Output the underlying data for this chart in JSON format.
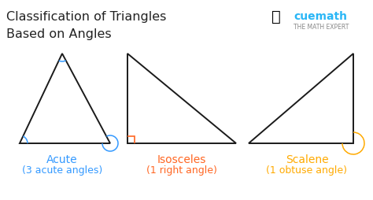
{
  "title_line1": "Classification of Triangles",
  "title_line2": "Based on Angles",
  "title_fontsize": 11.5,
  "title_color": "#222222",
  "bg_color": "#ffffff",
  "triangle_color": "#1a1a1a",
  "triangle_lw": 1.4,
  "label_fontsize": 10,
  "sublabel_fontsize": 9,
  "triangles": [
    {
      "name": "acute",
      "label": "Acute",
      "sublabel": "(3 acute angles)",
      "label_color": "#3399ff",
      "arc_color": "#3399ff"
    },
    {
      "name": "right",
      "label": "Isosceles",
      "sublabel": "(1 right angle)",
      "label_color": "#ff6622",
      "arc_color": "#ff6622"
    },
    {
      "name": "obtuse",
      "label": "Scalene",
      "sublabel": "(1 obtuse angle)",
      "label_color": "#ffaa00",
      "arc_color": "#ffaa00"
    }
  ],
  "cuemath_text": "cuemath",
  "cuemath_sub": "THE MATH EXPERT",
  "cuemath_color": "#29b6f6",
  "cuemath_sub_color": "#888888"
}
